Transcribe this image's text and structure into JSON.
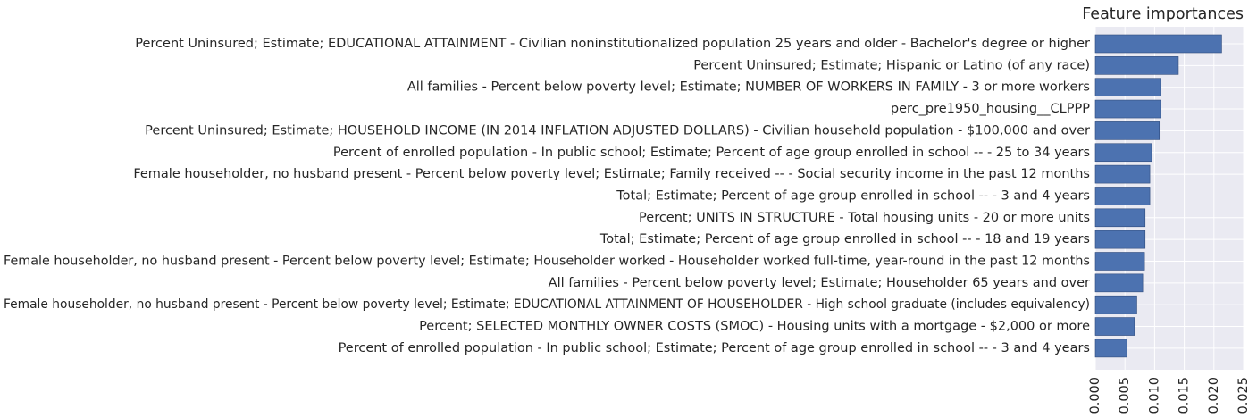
{
  "chart_data": {
    "type": "bar",
    "orientation": "horizontal",
    "title": "Feature importances",
    "xlabel": "",
    "ylabel": "",
    "xlim": [
      0,
      0.025
    ],
    "grid": true,
    "colors": {
      "bar": "#4c72b0",
      "plot_background": "#eaeaf2",
      "grid": "#ffffff"
    },
    "x_ticks": [
      "0.000",
      "0.005",
      "0.010",
      "0.015",
      "0.020",
      "0.025"
    ],
    "x_tick_values": [
      0,
      0.005,
      0.01,
      0.015,
      0.02,
      0.025
    ],
    "categories": [
      "Percent Uninsured; Estimate; EDUCATIONAL ATTAINMENT - Civilian noninstitutionalized population 25 years and older - Bachelor's degree or higher",
      "Percent Uninsured; Estimate; Hispanic or Latino (of any race)",
      "All families  - Percent below poverty level; Estimate; NUMBER OF WORKERS IN FAMILY - 3 or more workers",
      "perc_pre1950_housing__CLPPP",
      "Percent Uninsured; Estimate; HOUSEHOLD INCOME (IN 2014 INFLATION ADJUSTED DOLLARS) - Civilian household population - $100,000 and over",
      "Percent of enrolled population  - In public school; Estimate; Percent of age group enrolled in school -- - 25 to 34 years",
      "Female householder, no husband present  - Percent below poverty level; Estimate; Family received -- - Social security income in the past 12 months",
      "Total; Estimate; Percent of age group enrolled in school -- - 3 and 4 years",
      "Percent; UNITS IN STRUCTURE - Total housing units - 20 or more units",
      "Total; Estimate; Percent of age group enrolled in school -- - 18 and 19 years",
      "Female householder, no husband present  - Percent below poverty level; Estimate; Householder worked - Householder worked full-time, year-round in the past 12 months",
      "All families  - Percent below poverty level; Estimate; Householder 65 years and over",
      "Female householder, no husband present  - Percent below poverty level; Estimate; EDUCATIONAL ATTAINMENT OF HOUSEHOLDER - High school graduate (includes equivalency)",
      "Percent; SELECTED MONTHLY OWNER COSTS (SMOC) - Housing units with a mortgage - $2,000 or more",
      "Percent of enrolled population  - In public school; Estimate; Percent of age group enrolled in school -- - 3 and 4 years"
    ],
    "values": [
      0.0213,
      0.014,
      0.011,
      0.011,
      0.0108,
      0.0095,
      0.0092,
      0.0092,
      0.0084,
      0.0084,
      0.0083,
      0.008,
      0.007,
      0.0066,
      0.0053
    ]
  }
}
